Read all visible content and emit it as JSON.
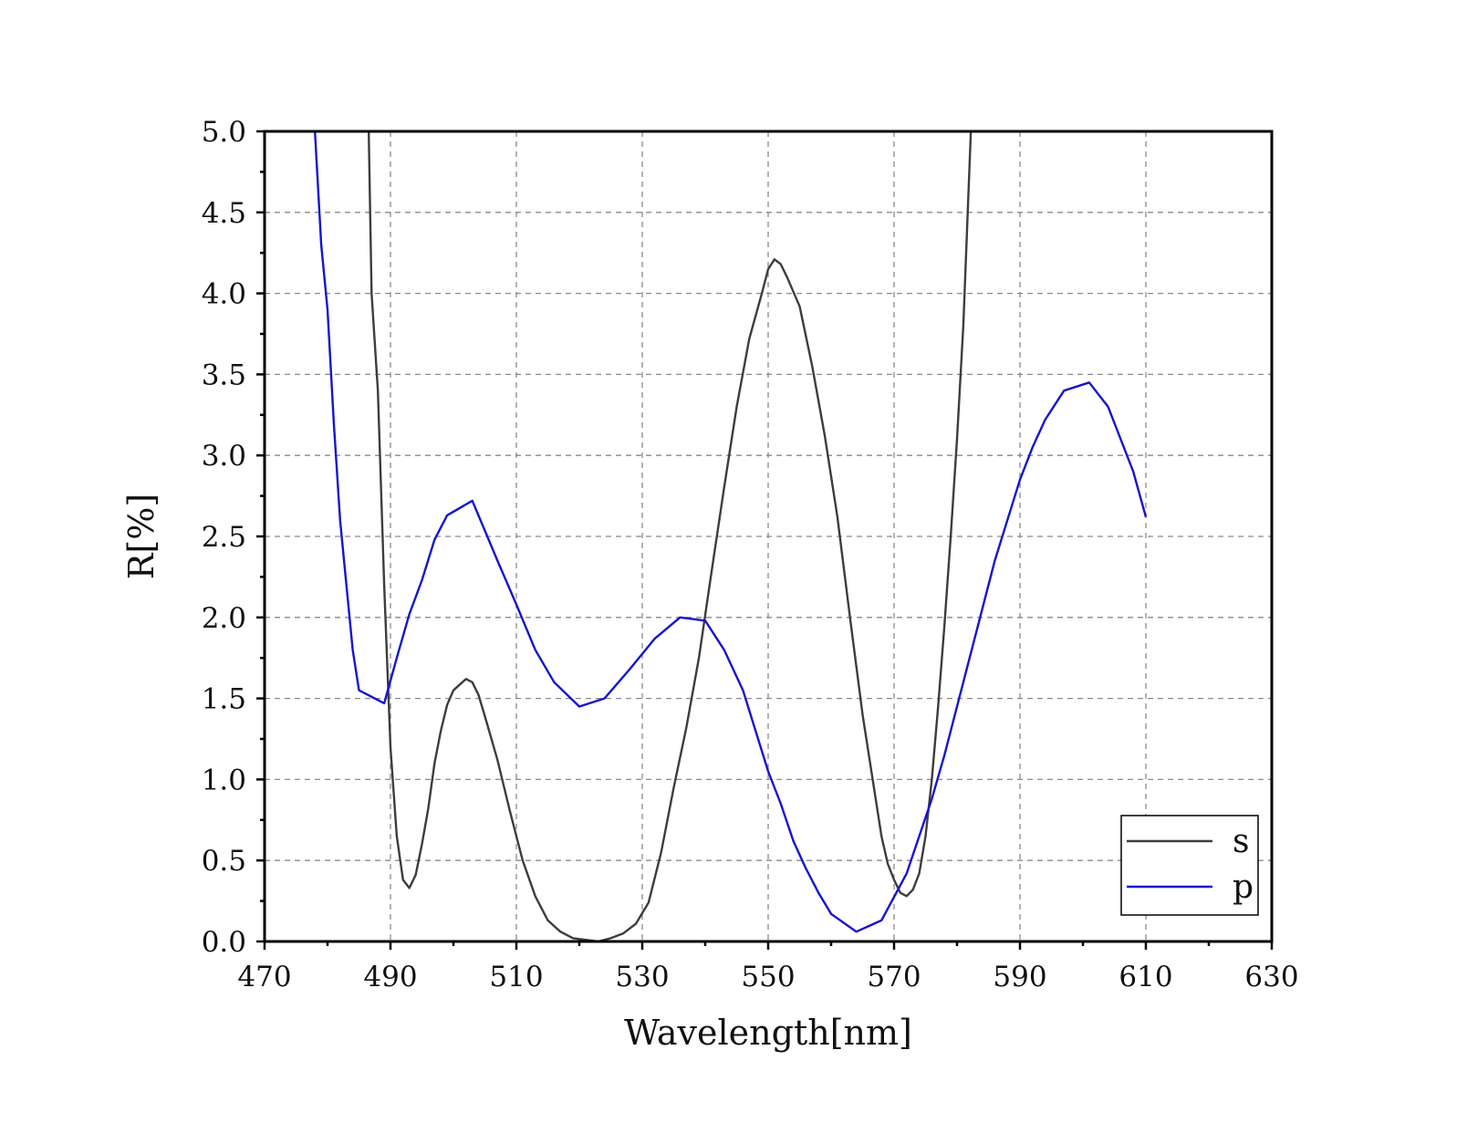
{
  "chart_data": {
    "type": "line",
    "xlabel": "Wavelength[nm]",
    "ylabel": "R[%]",
    "xlim": [
      470,
      630
    ],
    "ylim": [
      0,
      5
    ],
    "x_ticks": [
      "470",
      "490",
      "510",
      "530",
      "550",
      "570",
      "590",
      "610",
      "630"
    ],
    "y_ticks": [
      "0.0",
      "0.5",
      "1.0",
      "1.5",
      "2.0",
      "2.5",
      "3.0",
      "3.5",
      "4.0",
      "4.5",
      "5.0"
    ],
    "grid": true,
    "legend_position": "bottom-right",
    "series": [
      {
        "name": "s",
        "color": "#3d3d3d",
        "points": [
          [
            486,
            6.2
          ],
          [
            487,
            4.0
          ],
          [
            488,
            3.4
          ],
          [
            489,
            2.2
          ],
          [
            490,
            1.2
          ],
          [
            491,
            0.65
          ],
          [
            492,
            0.38
          ],
          [
            493,
            0.33
          ],
          [
            494,
            0.41
          ],
          [
            495,
            0.6
          ],
          [
            496,
            0.82
          ],
          [
            497,
            1.1
          ],
          [
            498,
            1.3
          ],
          [
            499,
            1.46
          ],
          [
            500,
            1.55
          ],
          [
            502,
            1.62
          ],
          [
            503,
            1.6
          ],
          [
            504,
            1.52
          ],
          [
            505,
            1.39
          ],
          [
            507,
            1.12
          ],
          [
            509,
            0.8
          ],
          [
            511,
            0.5
          ],
          [
            513,
            0.28
          ],
          [
            515,
            0.13
          ],
          [
            517,
            0.06
          ],
          [
            519,
            0.02
          ],
          [
            521,
            0.01
          ],
          [
            523,
            0.0
          ],
          [
            525,
            0.02
          ],
          [
            527,
            0.05
          ],
          [
            529,
            0.11
          ],
          [
            531,
            0.24
          ],
          [
            533,
            0.55
          ],
          [
            535,
            0.95
          ],
          [
            537,
            1.32
          ],
          [
            539,
            1.75
          ],
          [
            541,
            2.28
          ],
          [
            543,
            2.8
          ],
          [
            545,
            3.3
          ],
          [
            547,
            3.72
          ],
          [
            549,
            4.0
          ],
          [
            550,
            4.15
          ],
          [
            551,
            4.21
          ],
          [
            552,
            4.18
          ],
          [
            553,
            4.1
          ],
          [
            555,
            3.92
          ],
          [
            557,
            3.55
          ],
          [
            559,
            3.12
          ],
          [
            561,
            2.62
          ],
          [
            563,
            2.0
          ],
          [
            565,
            1.4
          ],
          [
            567,
            0.9
          ],
          [
            568,
            0.65
          ],
          [
            569,
            0.48
          ],
          [
            570,
            0.38
          ],
          [
            571,
            0.3
          ],
          [
            572,
            0.28
          ],
          [
            573,
            0.32
          ],
          [
            574,
            0.42
          ],
          [
            575,
            0.65
          ],
          [
            576,
            1.0
          ],
          [
            577,
            1.45
          ],
          [
            578,
            1.95
          ],
          [
            579,
            2.5
          ],
          [
            580,
            3.1
          ],
          [
            581,
            3.8
          ],
          [
            582,
            4.8
          ],
          [
            583,
            5.8
          ]
        ]
      },
      {
        "name": "p",
        "color": "#1414d2",
        "points": [
          [
            478,
            5.0
          ],
          [
            479,
            4.3
          ],
          [
            480,
            3.9
          ],
          [
            481,
            3.2
          ],
          [
            482,
            2.6
          ],
          [
            483,
            2.2
          ],
          [
            484,
            1.8
          ],
          [
            485,
            1.55
          ],
          [
            489,
            1.47
          ],
          [
            491,
            1.75
          ],
          [
            493,
            2.02
          ],
          [
            495,
            2.23
          ],
          [
            497,
            2.48
          ],
          [
            499,
            2.63
          ],
          [
            503,
            2.72
          ],
          [
            507,
            2.35
          ],
          [
            510,
            2.08
          ],
          [
            513,
            1.8
          ],
          [
            516,
            1.6
          ],
          [
            520,
            1.45
          ],
          [
            524,
            1.5
          ],
          [
            528,
            1.68
          ],
          [
            532,
            1.87
          ],
          [
            536,
            2.0
          ],
          [
            540,
            1.98
          ],
          [
            543,
            1.8
          ],
          [
            546,
            1.55
          ],
          [
            548,
            1.3
          ],
          [
            550,
            1.05
          ],
          [
            552,
            0.85
          ],
          [
            554,
            0.62
          ],
          [
            556,
            0.45
          ],
          [
            558,
            0.3
          ],
          [
            560,
            0.17
          ],
          [
            564,
            0.06
          ],
          [
            568,
            0.13
          ],
          [
            572,
            0.42
          ],
          [
            576,
            0.88
          ],
          [
            578,
            1.15
          ],
          [
            580,
            1.45
          ],
          [
            582,
            1.75
          ],
          [
            584,
            2.05
          ],
          [
            586,
            2.35
          ],
          [
            588,
            2.6
          ],
          [
            590,
            2.85
          ],
          [
            592,
            3.05
          ],
          [
            594,
            3.22
          ],
          [
            597,
            3.4
          ],
          [
            601,
            3.45
          ],
          [
            604,
            3.3
          ],
          [
            606,
            3.1
          ],
          [
            608,
            2.9
          ],
          [
            610,
            2.62
          ]
        ]
      }
    ]
  }
}
